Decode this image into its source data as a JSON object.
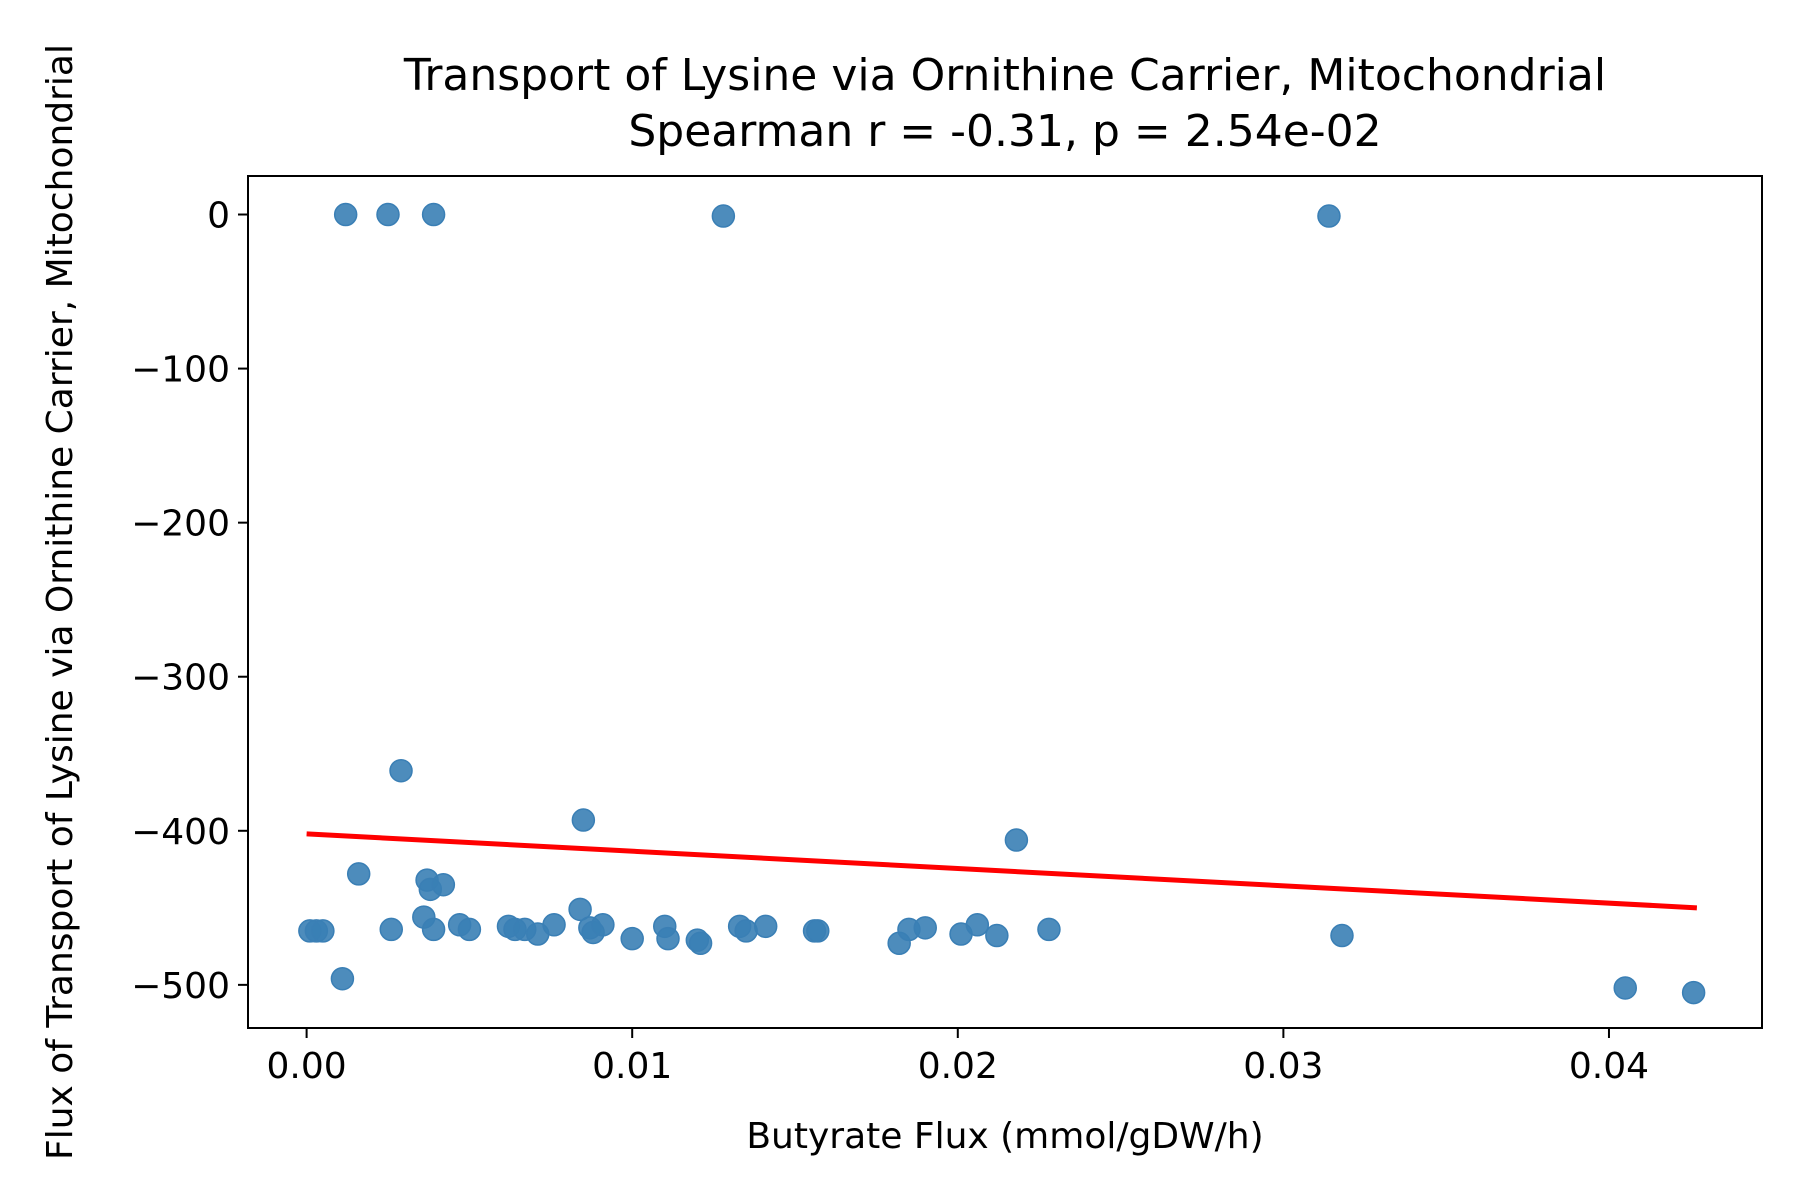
{
  "chart_data": {
    "type": "scatter",
    "title": "Transport of Lysine  via Ornithine Carrier, Mitochondrial",
    "subtitle": "Spearman r = -0.31, p = 2.54e-02",
    "xlabel": "Butyrate Flux (mmol/gDW/h)",
    "ylabel": "Flux of Transport of Lysine  via Ornithine Carrier, Mitochondrial",
    "xlim": [
      -0.0018,
      0.0447
    ],
    "ylim": [
      -528,
      25
    ],
    "xticks": [
      0.0,
      0.01,
      0.02,
      0.03,
      0.04
    ],
    "xtick_labels": [
      "0.00",
      "0.01",
      "0.02",
      "0.03",
      "0.04"
    ],
    "yticks": [
      0,
      -100,
      -200,
      -300,
      -400,
      -500
    ],
    "ytick_labels": [
      "0",
      "−100",
      "−200",
      "−300",
      "−400",
      "−500"
    ],
    "grid": false,
    "point_color": "#3a7fb5",
    "line_color": "#ff0000",
    "points": [
      {
        "x": 0.0012,
        "y": 0
      },
      {
        "x": 0.0025,
        "y": 0
      },
      {
        "x": 0.0039,
        "y": 0
      },
      {
        "x": 0.0128,
        "y": -1
      },
      {
        "x": 0.0314,
        "y": -1
      },
      {
        "x": 0.0029,
        "y": -361
      },
      {
        "x": 0.0085,
        "y": -393
      },
      {
        "x": 0.0218,
        "y": -406
      },
      {
        "x": 0.0016,
        "y": -428
      },
      {
        "x": 0.0037,
        "y": -432
      },
      {
        "x": 0.0038,
        "y": -438
      },
      {
        "x": 0.0042,
        "y": -435
      },
      {
        "x": 0.0036,
        "y": -456
      },
      {
        "x": 0.0084,
        "y": -451
      },
      {
        "x": 0.0001,
        "y": -465
      },
      {
        "x": 0.0003,
        "y": -465
      },
      {
        "x": 0.0005,
        "y": -465
      },
      {
        "x": 0.0026,
        "y": -464
      },
      {
        "x": 0.0039,
        "y": -464
      },
      {
        "x": 0.0047,
        "y": -461
      },
      {
        "x": 0.005,
        "y": -464
      },
      {
        "x": 0.0062,
        "y": -462
      },
      {
        "x": 0.0064,
        "y": -464
      },
      {
        "x": 0.0067,
        "y": -464
      },
      {
        "x": 0.0071,
        "y": -467
      },
      {
        "x": 0.0076,
        "y": -461
      },
      {
        "x": 0.0087,
        "y": -463
      },
      {
        "x": 0.0088,
        "y": -466
      },
      {
        "x": 0.0091,
        "y": -461
      },
      {
        "x": 0.01,
        "y": -470
      },
      {
        "x": 0.011,
        "y": -462
      },
      {
        "x": 0.0111,
        "y": -470
      },
      {
        "x": 0.012,
        "y": -471
      },
      {
        "x": 0.0121,
        "y": -473
      },
      {
        "x": 0.0133,
        "y": -462
      },
      {
        "x": 0.0135,
        "y": -465
      },
      {
        "x": 0.0141,
        "y": -462
      },
      {
        "x": 0.0156,
        "y": -465
      },
      {
        "x": 0.0157,
        "y": -465
      },
      {
        "x": 0.0182,
        "y": -473
      },
      {
        "x": 0.0185,
        "y": -464
      },
      {
        "x": 0.019,
        "y": -463
      },
      {
        "x": 0.0201,
        "y": -467
      },
      {
        "x": 0.0206,
        "y": -461
      },
      {
        "x": 0.0212,
        "y": -468
      },
      {
        "x": 0.0228,
        "y": -464
      },
      {
        "x": 0.0318,
        "y": -468
      },
      {
        "x": 0.0011,
        "y": -496
      },
      {
        "x": 0.0405,
        "y": -502
      },
      {
        "x": 0.0426,
        "y": -505
      }
    ],
    "fit_line": {
      "x": [
        0.0,
        0.0427
      ],
      "y": [
        -402,
        -450
      ]
    }
  }
}
